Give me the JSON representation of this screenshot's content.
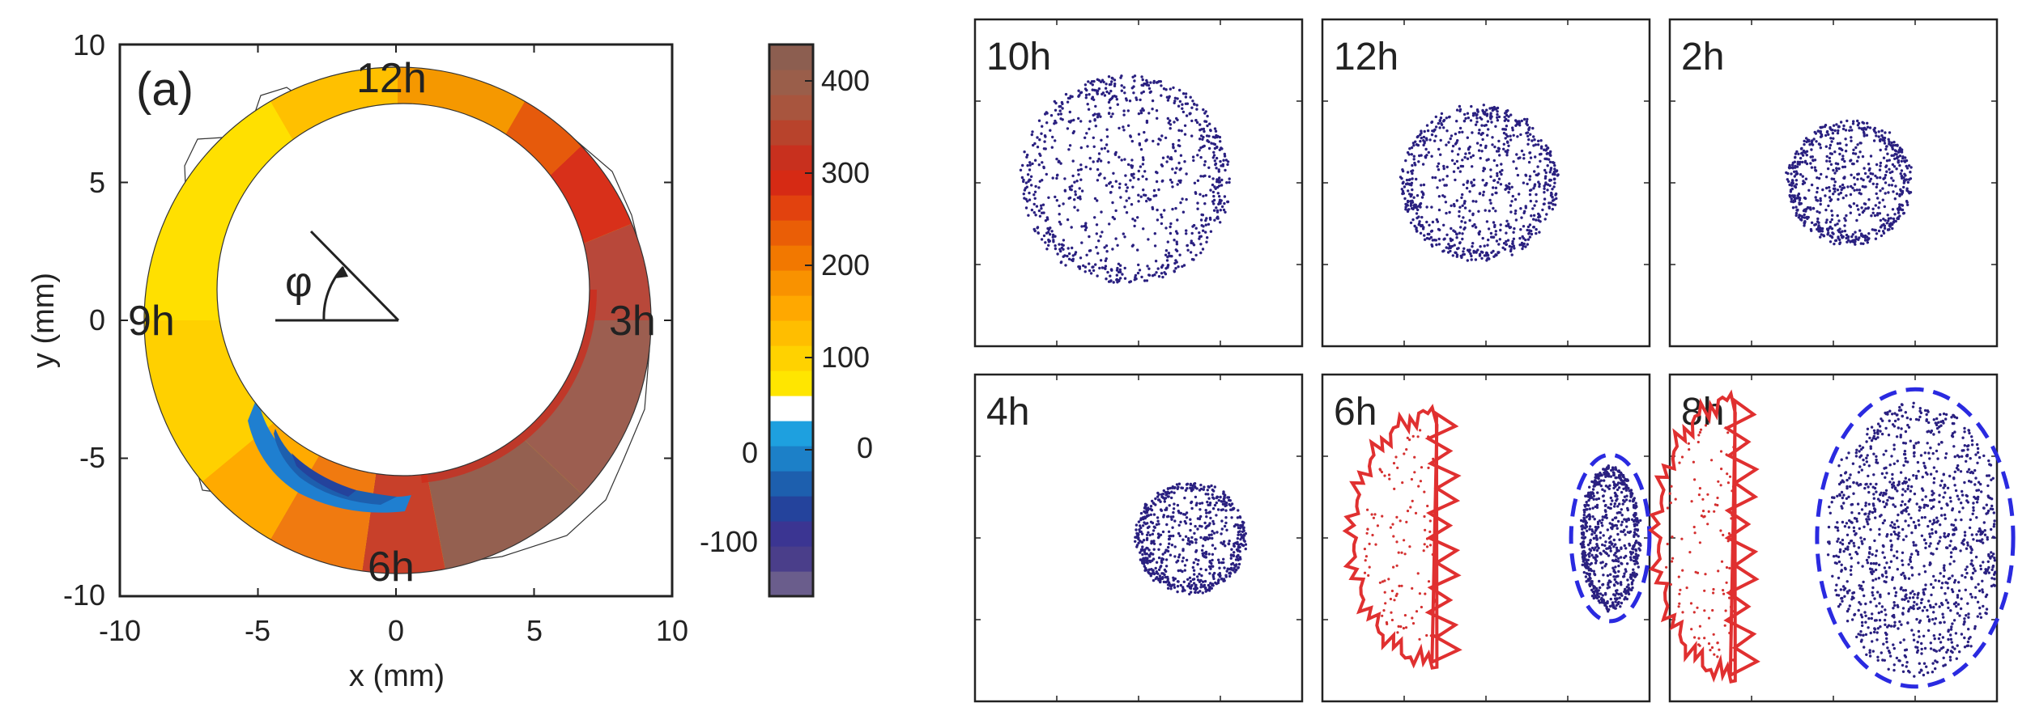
{
  "colors": {
    "axis": "#222222",
    "dot": "#2a2080",
    "red_outline": "#e03030",
    "blue_outline": "#2a2ae0",
    "red_dot": "#d43030"
  },
  "chart_data": [
    {
      "type": "heatmap",
      "panel_label": "(a)",
      "xlabel": "x (mm)",
      "ylabel": "y (mm)",
      "xlim": [
        -10,
        10
      ],
      "ylim": [
        -10,
        10
      ],
      "xticks": [
        "-10",
        "-5",
        "0",
        "5",
        "10"
      ],
      "yticks": [
        "10",
        "5",
        "0",
        "-5",
        "-10"
      ],
      "clock_labels": {
        "top": "12h",
        "right": "3h",
        "bottom": "6h",
        "left": "9h"
      },
      "angle_symbol": "φ",
      "ring": {
        "outer_radius_mm": 8.4,
        "inner_radius_mm": 6.0,
        "inner_center_mm": [
          0.8,
          1.2
        ]
      },
      "colorbar": {
        "range": [
          -160,
          440
        ],
        "ticks_right": [
          "400",
          "300",
          "200",
          "100",
          "0"
        ],
        "ticks_left": [
          "0",
          "-100"
        ],
        "levels": [
          "#6a5d8c",
          "#4a3e8a",
          "#3b3592",
          "#24439c",
          "#1d5fae",
          "#1c80c8",
          "#1ea0df",
          "#ffffff",
          "#ffe600",
          "#ffd200",
          "#ffbe00",
          "#ffa800",
          "#f99200",
          "#f27800",
          "#ea5e06",
          "#e2420e",
          "#d62a14",
          "#c8301e",
          "#b8432c",
          "#a8553e",
          "#9a5e4a",
          "#8c5e50"
        ]
      }
    },
    {
      "type": "scatter",
      "panels": [
        {
          "label": "10h",
          "clusters": [
            {
              "cx": 0.46,
              "cy": 0.49,
              "rx": 0.32,
              "ry": 0.32,
              "n": 900,
              "style": "ring"
            }
          ],
          "red_outline": false,
          "blue_outline": false
        },
        {
          "label": "12h",
          "clusters": [
            {
              "cx": 0.48,
              "cy": 0.5,
              "rx": 0.24,
              "ry": 0.24,
              "n": 800,
              "style": "ring"
            }
          ],
          "red_outline": false,
          "blue_outline": false
        },
        {
          "label": "2h",
          "clusters": [
            {
              "cx": 0.55,
              "cy": 0.5,
              "rx": 0.19,
              "ry": 0.19,
              "n": 700,
              "style": "ring"
            }
          ],
          "red_outline": false,
          "blue_outline": false
        },
        {
          "label": "4h",
          "clusters": [
            {
              "cx": 0.66,
              "cy": 0.5,
              "rx": 0.17,
              "ry": 0.17,
              "n": 700,
              "style": "ring"
            }
          ],
          "red_outline": false,
          "blue_outline": false
        },
        {
          "label": "6h",
          "clusters": [
            {
              "cx": 0.88,
              "cy": 0.5,
              "rx": 0.09,
              "ry": 0.22,
              "n": 700,
              "style": "ring"
            }
          ],
          "red_outline": true,
          "blue_outline": true
        },
        {
          "label": "8h",
          "clusters": [
            {
              "cx": 0.75,
              "cy": 0.5,
              "rx": 0.27,
              "ry": 0.42,
              "n": 1200,
              "style": "fill"
            }
          ],
          "red_outline": true,
          "blue_outline": true
        }
      ]
    }
  ]
}
